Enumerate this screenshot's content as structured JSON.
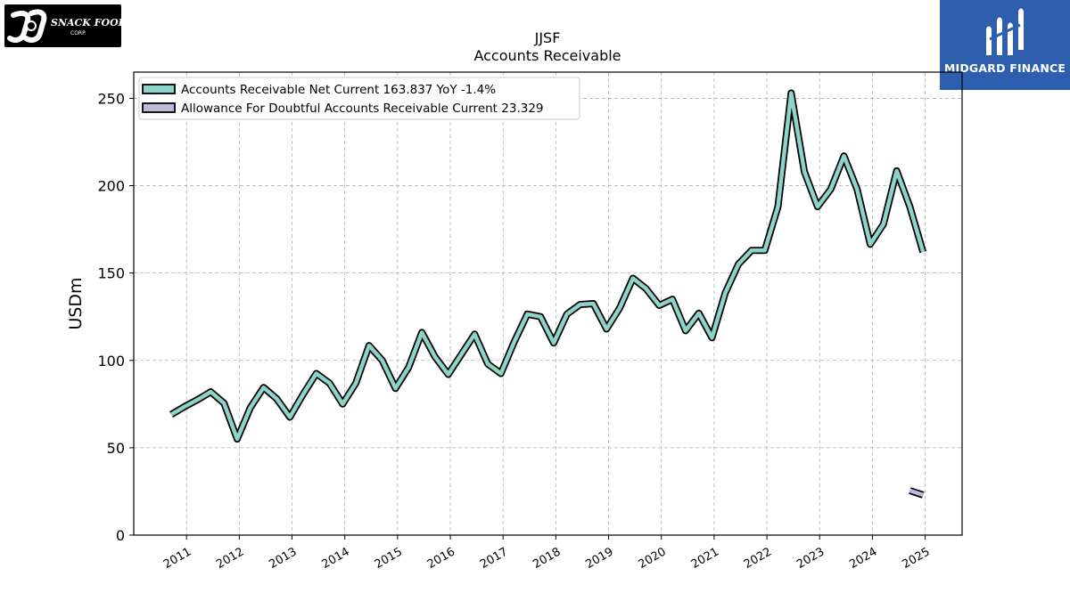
{
  "branding": {
    "left_logo_text": "J&J SNACK FOODS CORP.",
    "right_logo_text": "MIDGARD FINANCE",
    "right_logo_bg": "#2d5fae"
  },
  "chart_data": {
    "type": "line",
    "title": "JJSF",
    "subtitle": "Accounts Receivable",
    "ylabel": "USDm",
    "xlabel": "",
    "ylim": [
      0,
      265
    ],
    "xlim": [
      2010.0,
      2025.7
    ],
    "yticks": [
      0,
      50,
      100,
      150,
      200,
      250
    ],
    "xticks": [
      2011,
      2012,
      2013,
      2014,
      2015,
      2016,
      2017,
      2018,
      2019,
      2020,
      2021,
      2022,
      2023,
      2024,
      2025
    ],
    "xtick_labels": [
      "2011",
      "2012",
      "2013",
      "2014",
      "2015",
      "2016",
      "2017",
      "2018",
      "2019",
      "2020",
      "2021",
      "2022",
      "2023",
      "2024",
      "2025"
    ],
    "grid": true,
    "legend_position": "top-left",
    "series": [
      {
        "name": "Accounts Receivable Net Current",
        "legend_label": "Accounts Receivable Net Current  163.837 YoY -1.4%",
        "color": "#8dd3c7",
        "x": [
          2010.71,
          2010.96,
          2011.21,
          2011.46,
          2011.71,
          2011.96,
          2012.21,
          2012.46,
          2012.71,
          2012.96,
          2013.21,
          2013.46,
          2013.71,
          2013.96,
          2014.21,
          2014.46,
          2014.71,
          2014.96,
          2015.21,
          2015.46,
          2015.71,
          2015.96,
          2016.21,
          2016.46,
          2016.71,
          2016.96,
          2017.21,
          2017.46,
          2017.71,
          2017.96,
          2018.21,
          2018.46,
          2018.71,
          2018.96,
          2019.21,
          2019.46,
          2019.71,
          2019.96,
          2020.21,
          2020.46,
          2020.71,
          2020.96,
          2021.21,
          2021.46,
          2021.71,
          2021.96,
          2022.21,
          2022.46,
          2022.71,
          2022.96,
          2023.21,
          2023.46,
          2023.71,
          2023.96,
          2024.21,
          2024.46,
          2024.71,
          2024.96
        ],
        "y": [
          69,
          73.5,
          77.5,
          82,
          75.5,
          55,
          73,
          84.5,
          78,
          67.5,
          80.5,
          92.5,
          87,
          75,
          87,
          108.5,
          100,
          84,
          96,
          116,
          102,
          92,
          103.5,
          115,
          98,
          92.5,
          110.5,
          126.5,
          125,
          110,
          126.5,
          132,
          132.5,
          118,
          130,
          147,
          141,
          131.5,
          135,
          117,
          127,
          113,
          138.5,
          155,
          163,
          163,
          188,
          253,
          208,
          188,
          198,
          217,
          198,
          166.5,
          178,
          208.5,
          188,
          162
        ]
      },
      {
        "name": "Allowance For Doubtful Accounts Receivable Current",
        "legend_label": "Allowance For Doubtful Accounts Receivable Current  23.329",
        "color": "#bebada",
        "x": [
          2024.71,
          2024.96
        ],
        "y": [
          25.5,
          23
        ]
      }
    ]
  }
}
